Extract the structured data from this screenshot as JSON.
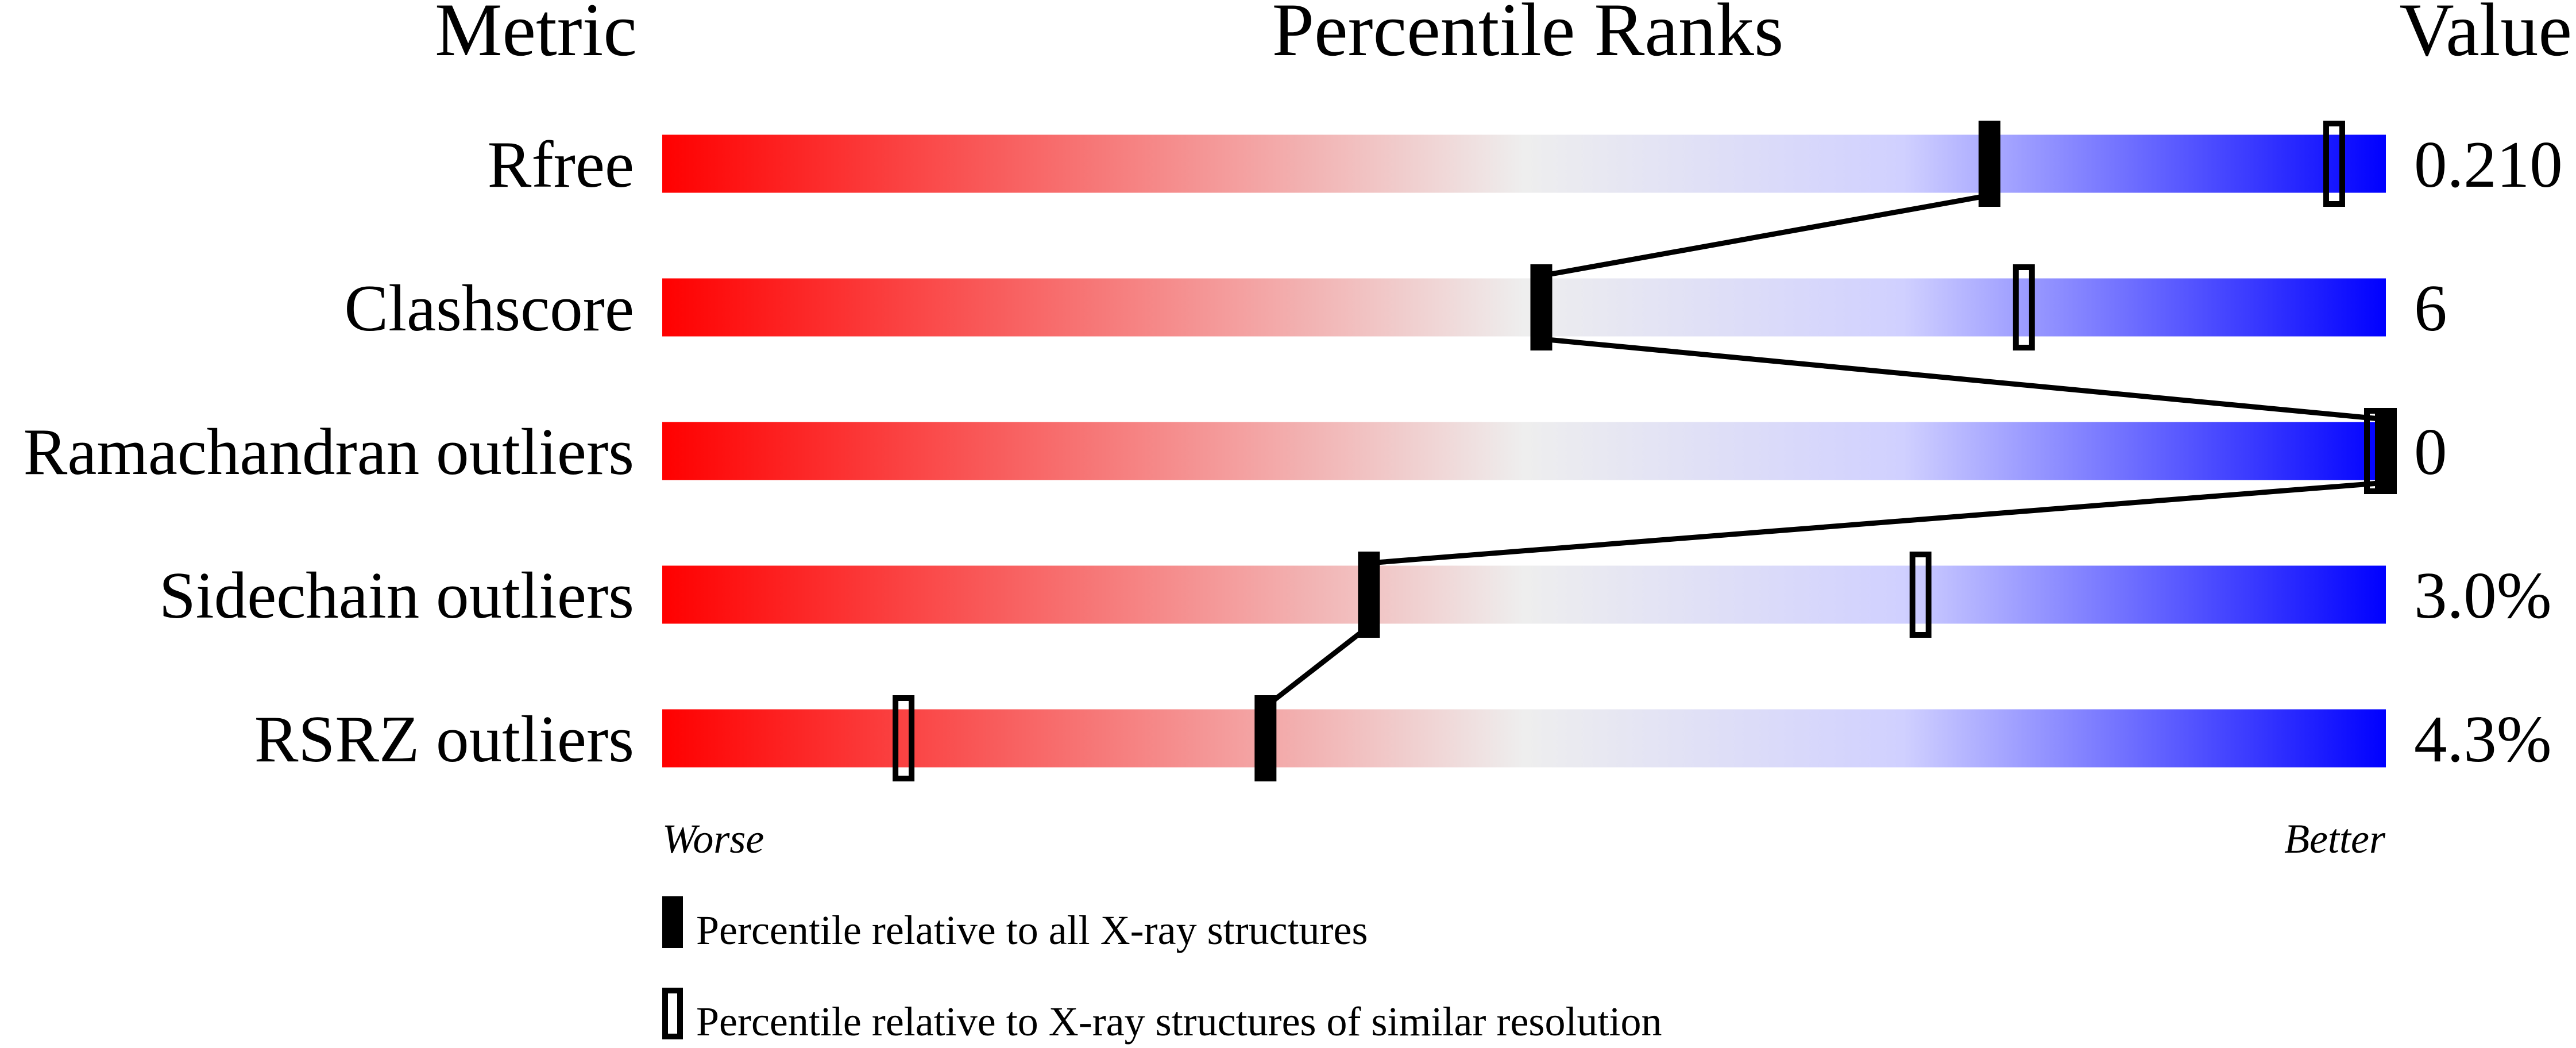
{
  "chart_data": {
    "type": "percentile-bar",
    "headers": {
      "metric": "Metric",
      "percentile": "Percentile Ranks",
      "value": "Value"
    },
    "xlim": [
      0,
      100
    ],
    "axis_labels": {
      "left": "Worse",
      "right": "Better"
    },
    "gradient_colors": [
      "#ff0000",
      "#eeeeee",
      "#d0d0ff",
      "#0000ff"
    ],
    "rows": [
      {
        "metric": "Rfree",
        "value": "0.210",
        "percentile_all": 77,
        "percentile_similar": 97
      },
      {
        "metric": "Clashscore",
        "value": "6",
        "percentile_all": 51,
        "percentile_similar": 79
      },
      {
        "metric": "Ramachandran outliers",
        "value": "0",
        "percentile_all": 100,
        "percentile_similar": 100
      },
      {
        "metric": "Sidechain outliers",
        "value": "3.0%",
        "percentile_all": 41,
        "percentile_similar": 73
      },
      {
        "metric": "RSRZ outliers",
        "value": "4.3%",
        "percentile_all": 35,
        "percentile_similar": 14
      }
    ],
    "legend": [
      {
        "marker": "filled",
        "label": "Percentile relative to all X-ray structures"
      },
      {
        "marker": "open",
        "label": "Percentile relative to X-ray structures of similar resolution"
      }
    ]
  }
}
